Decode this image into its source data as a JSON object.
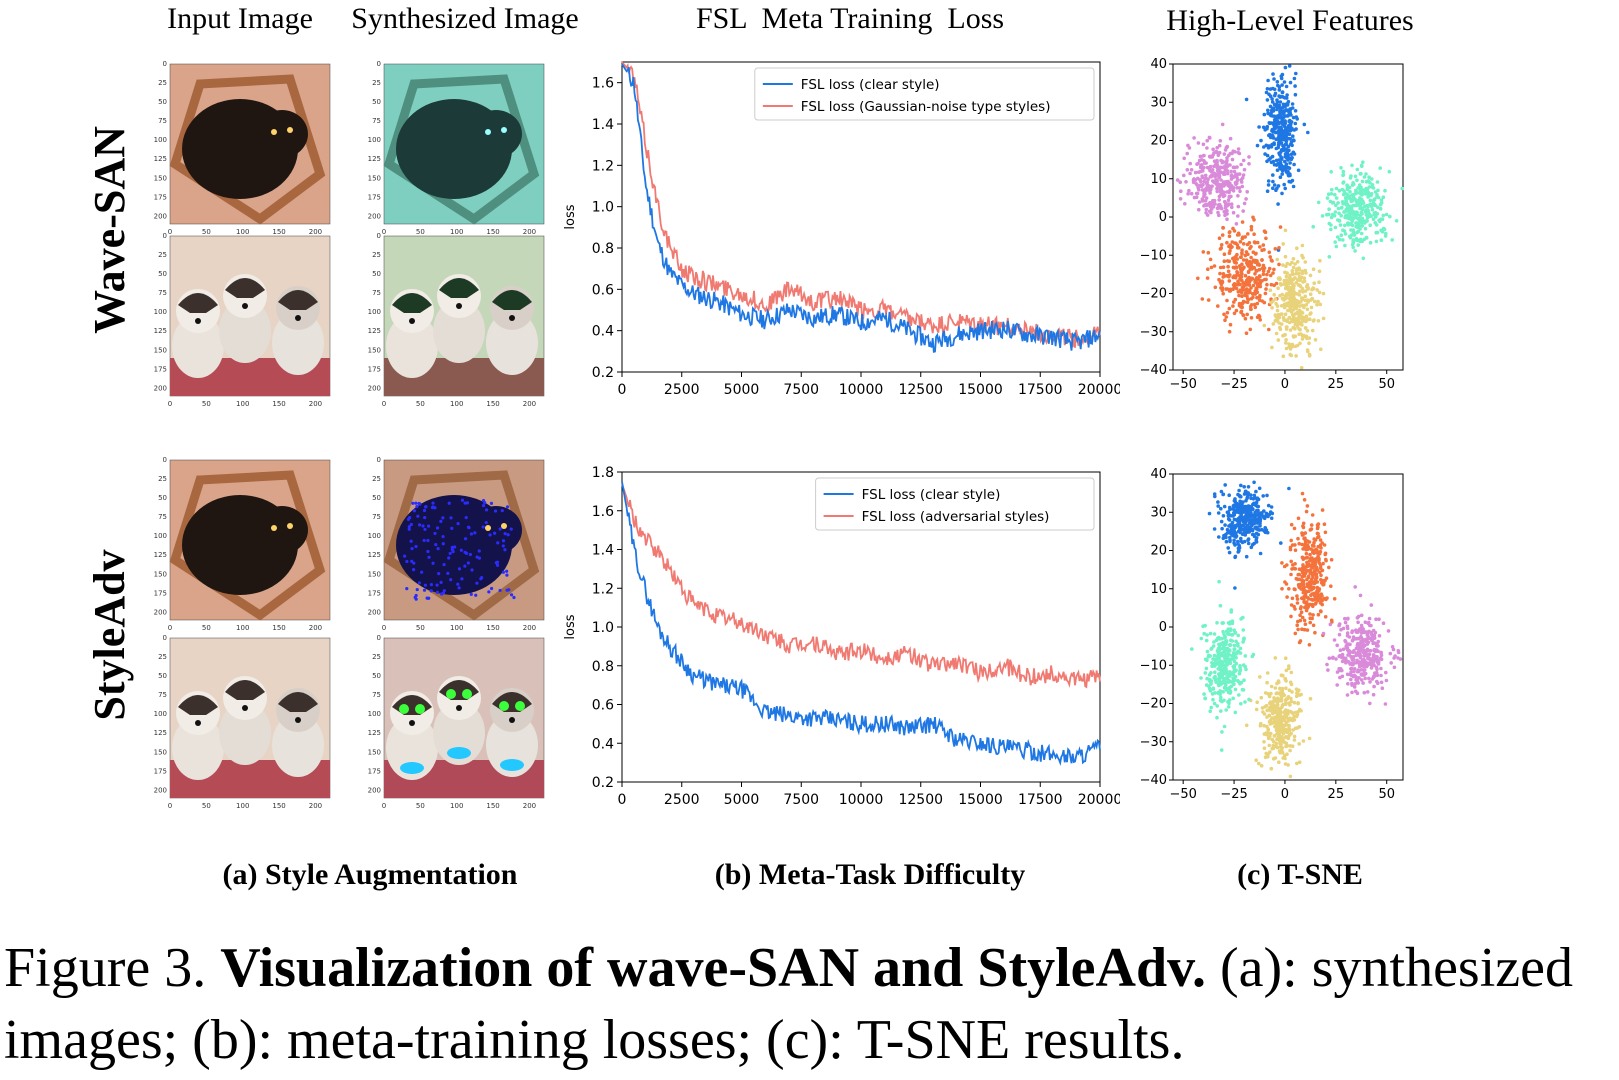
{
  "column_headers": [
    "Input Image",
    "Synthesized Image",
    "FSL  Meta Training  Loss",
    "High-Level Features"
  ],
  "row_labels": [
    "Wave-SAN",
    "StyleAdv"
  ],
  "subcaptions": [
    "(a) Style Augmentation",
    "(b) Meta-Task Difficulty",
    "(c) T-SNE"
  ],
  "caption": {
    "prefix": "Figure 3. ",
    "bold": "Visualization of wave-SAN and StyleAdv.",
    "rest": " (a): synthesized images; (b): meta-training losses; (c): T-SNE results."
  },
  "thumbnails": {
    "y_ticks": [
      "0",
      "25",
      "50",
      "75",
      "100",
      "125",
      "150",
      "175",
      "200"
    ],
    "x_ticks": [
      "0",
      "50",
      "100",
      "150",
      "200"
    ]
  },
  "colors": {
    "clear": "#1f77e4",
    "style": "#f07a72",
    "tsne": [
      "#1f77e4",
      "#f4733c",
      "#e8d27a",
      "#6ff2c6",
      "#d98ad9"
    ]
  },
  "chart_data": [
    {
      "type": "line",
      "xlabel": "",
      "ylabel": "loss",
      "xlim": [
        0,
        20000
      ],
      "ylim": [
        0.2,
        1.7
      ],
      "x_ticks": [
        0,
        2500,
        5000,
        7500,
        10000,
        12500,
        15000,
        17500,
        20000
      ],
      "y_ticks": [
        0.2,
        0.4,
        0.6,
        0.8,
        1.0,
        1.2,
        1.4,
        1.6
      ],
      "legend": "top-right",
      "series": [
        {
          "name": "FSL loss (clear style)",
          "x": [
            0,
            500,
            1000,
            1500,
            2000,
            2500,
            3000,
            4000,
            5000,
            6000,
            7000,
            8000,
            9000,
            10000,
            11000,
            12000,
            13000,
            14000,
            15000,
            16000,
            17000,
            18000,
            19000,
            20000
          ],
          "y": [
            1.69,
            1.6,
            1.1,
            0.82,
            0.68,
            0.62,
            0.58,
            0.54,
            0.48,
            0.45,
            0.5,
            0.46,
            0.48,
            0.44,
            0.46,
            0.4,
            0.34,
            0.38,
            0.4,
            0.41,
            0.38,
            0.37,
            0.34,
            0.38
          ]
        },
        {
          "name": "FSL loss (Gaussian-noise type styles)",
          "x": [
            0,
            500,
            1000,
            1500,
            2000,
            2500,
            3000,
            4000,
            5000,
            6000,
            7000,
            8000,
            9000,
            10000,
            11000,
            12000,
            13000,
            14000,
            15000,
            16000,
            17000,
            18000,
            19000,
            20000
          ],
          "y": [
            1.7,
            1.63,
            1.3,
            1.0,
            0.8,
            0.7,
            0.66,
            0.62,
            0.58,
            0.52,
            0.6,
            0.54,
            0.56,
            0.5,
            0.5,
            0.45,
            0.42,
            0.44,
            0.43,
            0.42,
            0.4,
            0.38,
            0.36,
            0.38
          ]
        }
      ]
    },
    {
      "type": "line",
      "xlabel": "",
      "ylabel": "loss",
      "xlim": [
        0,
        20000
      ],
      "ylim": [
        0.2,
        1.8
      ],
      "x_ticks": [
        0,
        2500,
        5000,
        7500,
        10000,
        12500,
        15000,
        17500,
        20000
      ],
      "y_ticks": [
        0.2,
        0.4,
        0.6,
        0.8,
        1.0,
        1.2,
        1.4,
        1.6,
        1.8
      ],
      "legend": "top-right",
      "series": [
        {
          "name": "FSL loss (clear style)",
          "x": [
            0,
            500,
            1000,
            1500,
            2000,
            2500,
            3000,
            4000,
            5000,
            6000,
            7000,
            8000,
            9000,
            10000,
            11000,
            12000,
            13000,
            14000,
            15000,
            16000,
            17000,
            18000,
            19000,
            20000
          ],
          "y": [
            1.75,
            1.4,
            1.18,
            1.0,
            0.9,
            0.82,
            0.75,
            0.7,
            0.68,
            0.56,
            0.54,
            0.53,
            0.52,
            0.5,
            0.5,
            0.48,
            0.5,
            0.42,
            0.4,
            0.38,
            0.36,
            0.34,
            0.33,
            0.38
          ]
        },
        {
          "name": "FSL loss (adversarial styles)",
          "x": [
            0,
            500,
            1000,
            1500,
            2000,
            2500,
            3000,
            4000,
            5000,
            6000,
            7000,
            8000,
            9000,
            10000,
            11000,
            12000,
            13000,
            14000,
            15000,
            16000,
            17000,
            18000,
            19000,
            20000
          ],
          "y": [
            1.74,
            1.55,
            1.45,
            1.38,
            1.3,
            1.2,
            1.12,
            1.06,
            1.02,
            0.96,
            0.9,
            0.92,
            0.86,
            0.88,
            0.84,
            0.86,
            0.8,
            0.82,
            0.76,
            0.8,
            0.74,
            0.76,
            0.72,
            0.74
          ]
        }
      ]
    },
    {
      "type": "scatter",
      "xlim": [
        -55,
        58
      ],
      "ylim": [
        -40,
        40
      ],
      "x_ticks": [
        -50,
        -25,
        0,
        25,
        50
      ],
      "y_ticks": [
        40,
        30,
        20,
        10,
        0,
        -10,
        -20,
        -30,
        -40
      ],
      "clusters": [
        {
          "cx": -2,
          "cy": 22,
          "sx": 4,
          "sy": 7
        },
        {
          "cx": -20,
          "cy": -15,
          "sx": 7,
          "sy": 6
        },
        {
          "cx": 5,
          "cy": -23,
          "sx": 5,
          "sy": 6
        },
        {
          "cx": 36,
          "cy": 2,
          "sx": 7,
          "sy": 5
        },
        {
          "cx": -34,
          "cy": 10,
          "sx": 7,
          "sy": 5
        }
      ]
    },
    {
      "type": "scatter",
      "xlim": [
        -55,
        58
      ],
      "ylim": [
        -40,
        40
      ],
      "x_ticks": [
        -50,
        -25,
        0,
        25,
        50
      ],
      "y_ticks": [
        40,
        30,
        20,
        10,
        0,
        -10,
        -20,
        -30,
        -40
      ],
      "clusters": [
        {
          "cx": -20,
          "cy": 28,
          "sx": 6,
          "sy": 4
        },
        {
          "cx": 12,
          "cy": 14,
          "sx": 5,
          "sy": 7
        },
        {
          "cx": -2,
          "cy": -24,
          "sx": 5,
          "sy": 6
        },
        {
          "cx": -30,
          "cy": -10,
          "sx": 5,
          "sy": 6
        },
        {
          "cx": 38,
          "cy": -7,
          "sx": 7,
          "sy": 5
        }
      ]
    }
  ]
}
